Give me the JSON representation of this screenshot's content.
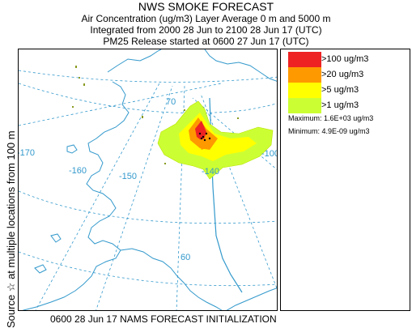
{
  "header": {
    "title": "NWS SMOKE FORECAST",
    "line2": "Air Concentration (ug/m3) Layer Average    0 m and  5000 m",
    "line3": "Integrated from 2000 28 Jun to 2100 28 Jun 17 (UTC)",
    "line4": "PM25 Release started at 0600 27 Jun 17 (UTC)"
  },
  "side_label": "Source ☆  at multiple locations     from   100 m",
  "map": {
    "longitude_labels": [
      "-170",
      "-160",
      "-150",
      "-140",
      "-100"
    ],
    "latitude_labels": [
      "70",
      "60"
    ],
    "colors": {
      "land": "#ffffff",
      "coast": "#3399cc",
      "grid": "#3399cc",
      "border": "#3399cc"
    }
  },
  "legend": {
    "items": [
      {
        "label": ">100 ug/m3",
        "color": "#ee2222"
      },
      {
        "label": ">20 ug/m3",
        "color": "#ff9900"
      },
      {
        "label": ">5 ug/m3",
        "color": "#ffff00"
      },
      {
        "label": ">1 ug/m3",
        "color": "#ccff33"
      }
    ],
    "maximum": "Maximum:  1.6E+03 ug/m3",
    "minimum": "Minimum:  4.9E-09 ug/m3"
  },
  "footer": "0600 28 Jun 17 NAMS FORECAST INITIALIZATION"
}
